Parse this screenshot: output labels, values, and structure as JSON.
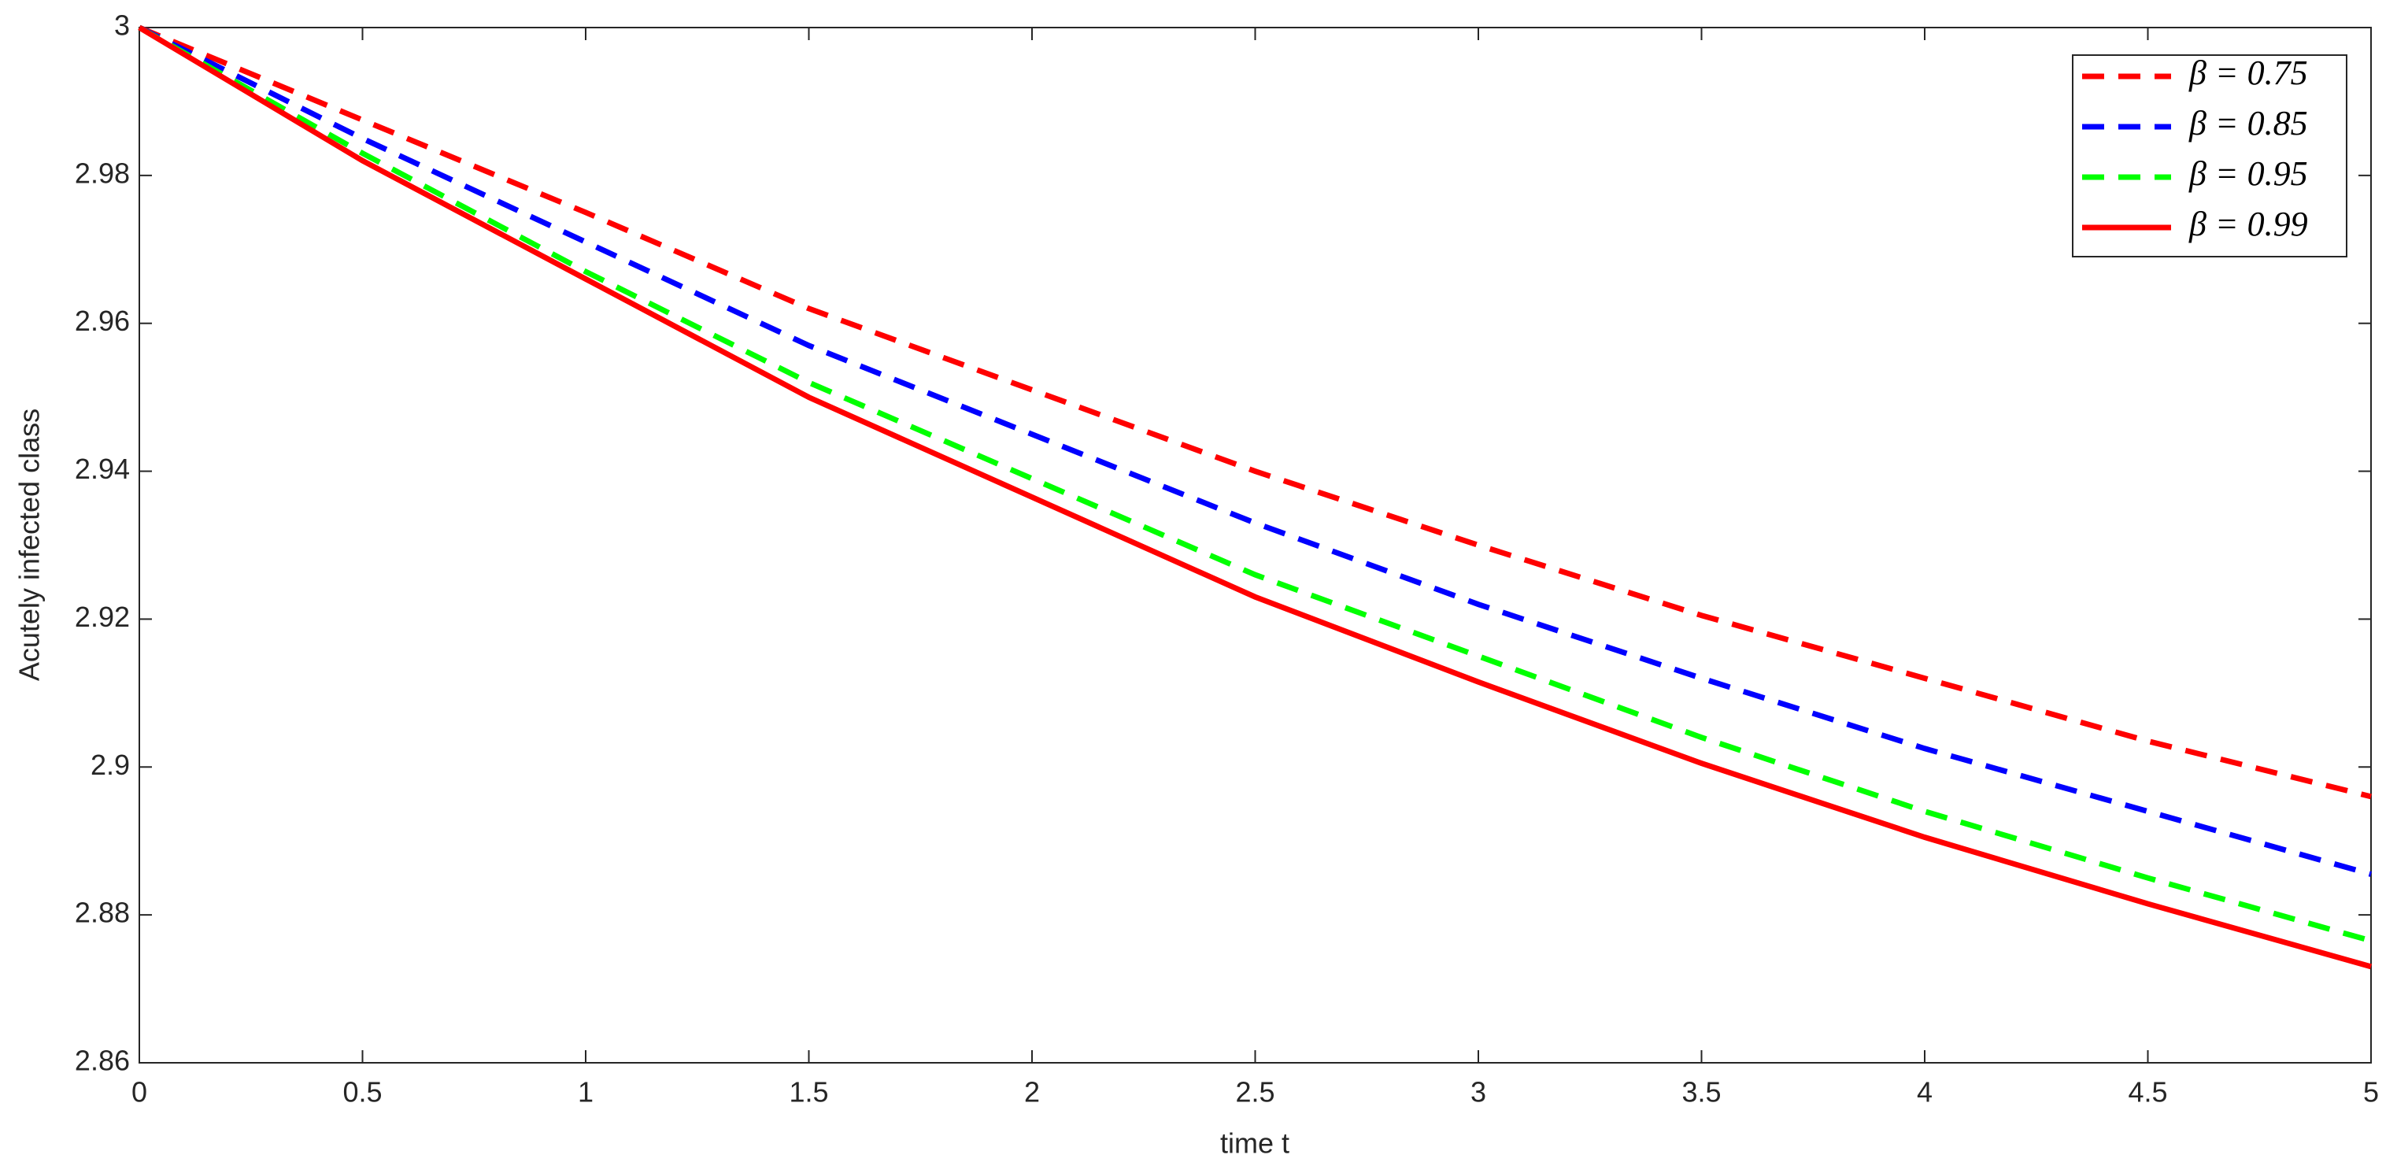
{
  "chart_data": {
    "type": "line",
    "xlabel": "time t",
    "ylabel": "Acutely infected class",
    "x": [
      0,
      0.5,
      1,
      1.5,
      2,
      2.5,
      3,
      3.5,
      4,
      4.5,
      5
    ],
    "series": [
      {
        "name": "β = 0.75",
        "color": "#ff0000",
        "dash": true,
        "values": [
          3,
          2.9875,
          2.975,
          2.962,
          2.951,
          2.94,
          2.93,
          2.9205,
          2.912,
          2.9035,
          2.896
        ]
      },
      {
        "name": "β = 0.85",
        "color": "#0000ff",
        "dash": true,
        "values": [
          3,
          2.985,
          2.971,
          2.957,
          2.945,
          2.933,
          2.922,
          2.912,
          2.9025,
          2.894,
          2.8855
        ]
      },
      {
        "name": "β = 0.95",
        "color": "#00ff00",
        "dash": true,
        "values": [
          3,
          2.983,
          2.967,
          2.952,
          2.939,
          2.926,
          2.915,
          2.904,
          2.894,
          2.885,
          2.8765
        ]
      },
      {
        "name": "β = 0.99",
        "color": "#ff0000",
        "dash": false,
        "values": [
          3,
          2.982,
          2.966,
          2.95,
          2.9365,
          2.923,
          2.9115,
          2.9005,
          2.8905,
          2.8815,
          2.873
        ]
      }
    ],
    "xlim": [
      0,
      5
    ],
    "xticks": [
      0,
      0.5,
      1,
      1.5,
      2,
      2.5,
      3,
      3.5,
      4,
      4.5,
      5
    ],
    "ylim": [
      2.86,
      3
    ],
    "yticks": [
      2.86,
      2.88,
      2.9,
      2.92,
      2.94,
      2.96,
      2.98,
      3
    ],
    "legend": "upper right",
    "grid": false
  }
}
